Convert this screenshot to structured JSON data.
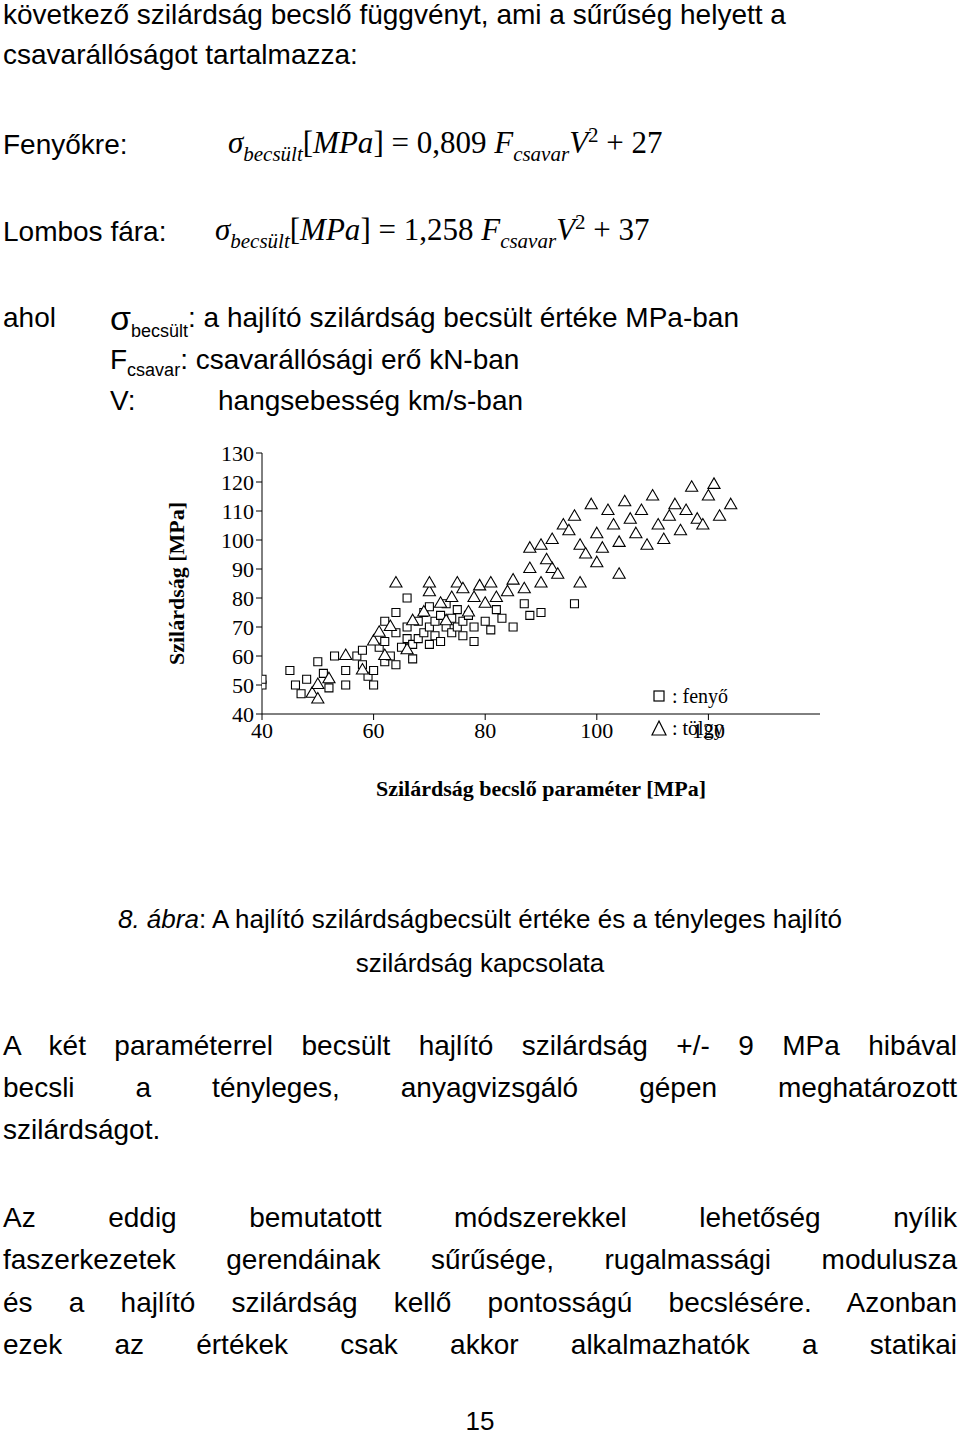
{
  "intro_lines": [
    "következő szilárdság becslő függvényt, ami a sűrűség helyett a",
    "csavarállóságot tartalmazza:"
  ],
  "formulas": [
    {
      "label": "Fenyőkre:",
      "tokens": [
        {
          "t": "σ",
          "i": true
        },
        {
          "t": "becsült",
          "i": true,
          "sub": true
        },
        {
          "t": "["
        },
        {
          "t": "MPa",
          "i": true
        },
        {
          "t": "] = 0,809 "
        },
        {
          "t": "F",
          "i": true
        },
        {
          "t": "csavar",
          "i": true,
          "sub": true
        },
        {
          "t": "V",
          "i": true
        },
        {
          "t": "2",
          "sup": true
        },
        {
          "t": " + 27"
        }
      ]
    },
    {
      "label": "Lombos fára:",
      "tokens": [
        {
          "t": "σ",
          "i": true
        },
        {
          "t": "becsült",
          "i": true,
          "sub": true
        },
        {
          "t": "["
        },
        {
          "t": "MPa",
          "i": true
        },
        {
          "t": "] = 1,258 "
        },
        {
          "t": "F",
          "i": true
        },
        {
          "t": "csavar",
          "i": true,
          "sub": true
        },
        {
          "t": "V",
          "i": true
        },
        {
          "t": "2",
          "sup": true
        },
        {
          "t": " + 37"
        }
      ]
    }
  ],
  "definitions": {
    "lead": "ahol",
    "items": [
      {
        "symbol": "σ",
        "sub": "becsült",
        "text": ": a hajlító szilárdság becsült értéke MPa-ban"
      },
      {
        "symbol": "F",
        "sub": "csavar",
        "text": ": csavarállósági erő kN-ban"
      },
      {
        "symbol": "V:",
        "text": "hangsebesség km/s-ban"
      }
    ]
  },
  "chart_data": {
    "type": "scatter",
    "x_label": "Szilárdság becslő paraméter [MPa]",
    "y_label": "Szilárdság [MPa]",
    "xlim": [
      40,
      140
    ],
    "ylim": [
      40,
      130
    ],
    "xticks": [
      40,
      60,
      80,
      100,
      120
    ],
    "yticks": [
      40,
      50,
      60,
      70,
      80,
      90,
      100,
      110,
      120,
      130
    ],
    "grid": false,
    "legend": "lower right",
    "series": [
      {
        "name": ": fenyő",
        "marker": "square",
        "color": "#000000",
        "x": [
          40,
          40,
          45,
          46,
          47,
          48,
          50,
          51,
          52,
          53,
          55,
          55,
          57,
          58,
          58,
          59,
          60,
          60,
          61,
          62,
          62,
          63,
          64,
          64,
          65,
          66,
          66,
          67,
          67,
          68,
          68,
          69,
          69,
          70,
          70,
          70,
          71,
          71,
          72,
          72,
          73,
          73,
          74,
          74,
          75,
          75,
          76,
          76,
          77,
          78,
          78,
          80,
          81,
          82,
          83,
          85,
          87,
          88,
          90,
          96,
          64,
          66,
          62
        ],
        "y": [
          50,
          52,
          55,
          50,
          47,
          52,
          58,
          54,
          49,
          60,
          50,
          55,
          60,
          62,
          57,
          53,
          55,
          50,
          63,
          58,
          65,
          60,
          68,
          57,
          63,
          66,
          70,
          64,
          59,
          72,
          66,
          75,
          68,
          64,
          70,
          77,
          72,
          67,
          65,
          74,
          78,
          70,
          68,
          73,
          76,
          70,
          72,
          67,
          74,
          65,
          70,
          72,
          69,
          76,
          73,
          70,
          78,
          74,
          75,
          78,
          75,
          80,
          72
        ]
      },
      {
        "name": ": tölgy",
        "marker": "triangle",
        "color": "#000000",
        "x": [
          49,
          50,
          50,
          52,
          55,
          58,
          60,
          61,
          62,
          63,
          64,
          66,
          67,
          69,
          70,
          70,
          72,
          73,
          74,
          75,
          76,
          77,
          78,
          79,
          80,
          81,
          82,
          84,
          85,
          87,
          88,
          90,
          92,
          93,
          88,
          90,
          91,
          92,
          94,
          95,
          96,
          97,
          98,
          99,
          100,
          101,
          102,
          103,
          104,
          105,
          106,
          107,
          108,
          109,
          110,
          111,
          112,
          113,
          114,
          115,
          116,
          117,
          118,
          119,
          120,
          121,
          122,
          124,
          100,
          104,
          97
        ],
        "y": [
          47,
          45,
          50,
          52,
          60,
          55,
          65,
          68,
          60,
          70,
          85,
          62,
          72,
          75,
          82,
          85,
          78,
          72,
          80,
          85,
          83,
          75,
          80,
          84,
          78,
          85,
          80,
          82,
          86,
          83,
          90,
          85,
          90,
          88,
          97,
          98,
          93,
          100,
          105,
          103,
          108,
          98,
          95,
          112,
          102,
          97,
          110,
          105,
          99,
          113,
          107,
          102,
          110,
          98,
          115,
          105,
          100,
          108,
          112,
          103,
          110,
          118,
          107,
          105,
          115,
          119,
          108,
          112,
          92,
          88,
          85
        ]
      }
    ]
  },
  "caption": {
    "label": "8. ábra",
    "lines": [
      ": A hajlító szilárdságbecsült értéke és a tényleges hajlító",
      "szilárdság kapcsolata"
    ]
  },
  "paragraphs": [
    [
      "A két paraméterrel becsült hajlító szilárdság +/- 9 MPa hibával",
      "becsli a tényleges, anyagvizsgáló gépen meghatározott",
      "szilárdságot."
    ],
    [
      "Az eddig bemutatott módszerekkel lehetőség nyílik",
      "faszerkezetek gerendáinak sűrűsége, rugalmassági modulusza",
      "és a hajlító szilárdság kellő pontosságú becslésére. Azonban",
      "ezek az értékek csak akkor alkalmazhatók a statikai"
    ]
  ],
  "page_number": "15"
}
